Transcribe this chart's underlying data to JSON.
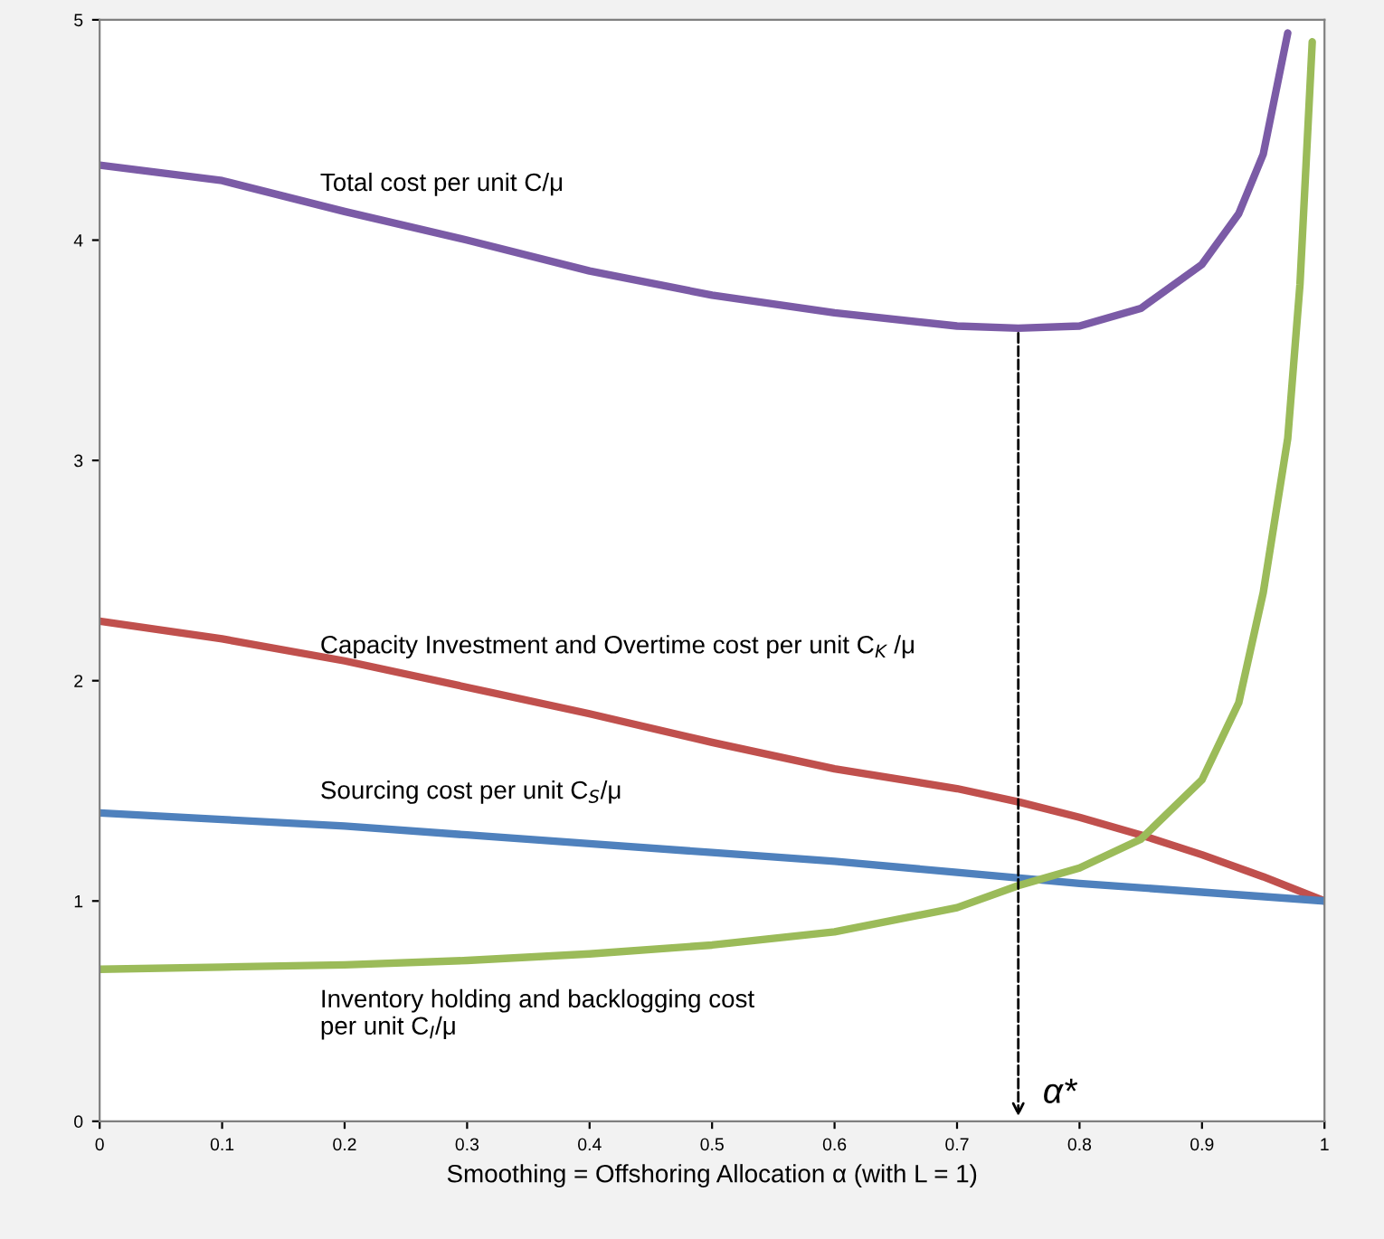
{
  "chart_data": {
    "type": "line",
    "xlabel": "Smoothing = Offshoring Allocation α (with L = 1)",
    "xlim": [
      0,
      1
    ],
    "xticks": [
      0,
      0.1,
      0.2,
      0.3,
      0.4,
      0.5,
      0.6,
      0.7,
      0.8,
      0.9,
      1
    ],
    "ylim": [
      0,
      5
    ],
    "yticks": [
      0,
      1,
      2,
      3,
      4,
      5
    ],
    "grid": false,
    "legend": false,
    "marker": "none",
    "line_style": "solid",
    "series": [
      {
        "name": "Total cost per unit C/μ",
        "color": "#7b5ba6",
        "x": [
          0,
          0.1,
          0.2,
          0.3,
          0.4,
          0.5,
          0.6,
          0.7,
          0.75,
          0.8,
          0.85,
          0.9,
          0.93,
          0.95,
          0.97
        ],
        "values": [
          4.34,
          4.27,
          4.13,
          4.0,
          3.86,
          3.75,
          3.67,
          3.61,
          3.6,
          3.61,
          3.69,
          3.89,
          4.12,
          4.39,
          4.94
        ]
      },
      {
        "name": "Capacity Investment and Overtime cost per unit C$_{K}$ /μ",
        "color": "#c0504d",
        "x": [
          0,
          0.1,
          0.2,
          0.3,
          0.4,
          0.5,
          0.6,
          0.7,
          0.75,
          0.8,
          0.85,
          0.9,
          0.95,
          1.0
        ],
        "values": [
          2.27,
          2.19,
          2.09,
          1.97,
          1.85,
          1.72,
          1.6,
          1.51,
          1.45,
          1.38,
          1.3,
          1.21,
          1.11,
          1.0
        ]
      },
      {
        "name": "Sourcing cost per unit C$_{S}$/μ",
        "color": "#4f81bd",
        "x": [
          0,
          0.1,
          0.2,
          0.3,
          0.4,
          0.5,
          0.6,
          0.7,
          0.8,
          0.9,
          1.0
        ],
        "values": [
          1.4,
          1.37,
          1.34,
          1.3,
          1.26,
          1.22,
          1.18,
          1.13,
          1.08,
          1.04,
          1.0
        ]
      },
      {
        "name": "Inventory holding and backlogging cost\nper unit C$_{I}$/μ",
        "color": "#9bbb59",
        "x": [
          0,
          0.1,
          0.2,
          0.3,
          0.4,
          0.5,
          0.6,
          0.7,
          0.75,
          0.8,
          0.85,
          0.9,
          0.93,
          0.95,
          0.97,
          0.98,
          0.99
        ],
        "values": [
          0.69,
          0.7,
          0.71,
          0.73,
          0.76,
          0.8,
          0.86,
          0.97,
          1.07,
          1.15,
          1.28,
          1.55,
          1.9,
          2.4,
          3.1,
          3.8,
          4.9
        ]
      }
    ],
    "annotations": [
      {
        "text": "α*",
        "x": 0.75,
        "y": 3.6
      }
    ]
  }
}
